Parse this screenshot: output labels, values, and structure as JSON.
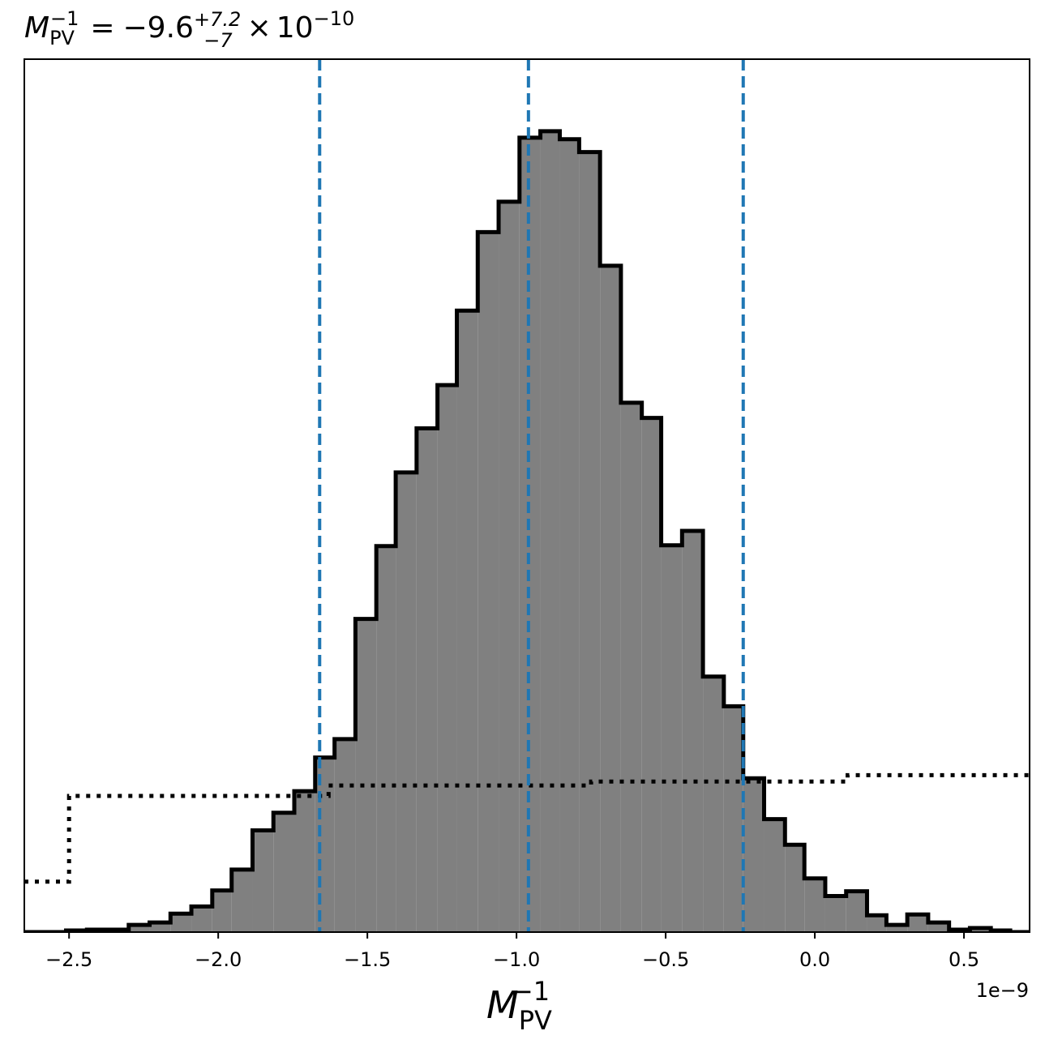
{
  "chart_data": {
    "type": "histogram",
    "title": {
      "symbol": "M",
      "subscript": "PV",
      "superscript": "−1",
      "equals": "=",
      "median": "−9.6",
      "plus_err": "+7.2",
      "minus_err": "−7",
      "times": "×",
      "base": "10",
      "exponent": "−10"
    },
    "xlabel": {
      "symbol": "M",
      "subscript": "PV",
      "superscript": "−1"
    },
    "ylabel": "",
    "x_offset_label": "1e−9",
    "xlim": [
      -2.65,
      0.72
    ],
    "ylim": [
      0,
      1.09
    ],
    "xticks": [
      -2.5,
      -2.0,
      -1.5,
      -1.0,
      -0.5,
      0.0,
      0.5
    ],
    "xtick_labels": [
      "−2.5",
      "−2.0",
      "−1.5",
      "−1.0",
      "−0.5",
      "0.0",
      "0.5"
    ],
    "show_yticks": false,
    "grid": false,
    "posterior": {
      "fill_color": "#808080",
      "edge_color": "#000000",
      "bin_edges": [
        -2.65,
        -2.58,
        -2.51,
        -2.44,
        -2.37,
        -2.3,
        -2.23,
        -2.16,
        -2.09,
        -2.02,
        -1.955,
        -1.885,
        -1.815,
        -1.745,
        -1.675,
        -1.61,
        -1.54,
        -1.47,
        -1.405,
        -1.335,
        -1.265,
        -1.2,
        -1.13,
        -1.06,
        -0.99,
        -0.92,
        -0.855,
        -0.79,
        -0.72,
        -0.65,
        -0.58,
        -0.515,
        -0.445,
        -0.375,
        -0.305,
        -0.24,
        -0.17,
        -0.1,
        -0.035,
        0.035,
        0.105,
        0.175,
        0.24,
        0.31,
        0.38,
        0.45,
        0.52,
        0.59,
        0.655,
        0.72
      ],
      "values": [
        0.0,
        0.0,
        0.002,
        0.003,
        0.003,
        0.009,
        0.012,
        0.023,
        0.032,
        0.052,
        0.078,
        0.127,
        0.149,
        0.176,
        0.218,
        0.241,
        0.391,
        0.482,
        0.574,
        0.629,
        0.683,
        0.776,
        0.874,
        0.912,
        0.992,
        1.0,
        0.99,
        0.974,
        0.832,
        0.661,
        0.642,
        0.483,
        0.501,
        0.319,
        0.282,
        0.192,
        0.141,
        0.109,
        0.067,
        0.045,
        0.051,
        0.021,
        0.009,
        0.022,
        0.012,
        0.003,
        0.005,
        0.002,
        0.0
      ],
      "max_density_label": ""
    },
    "prior": {
      "style": "dotted",
      "color": "#000000",
      "steps": [
        {
          "x0": -2.65,
          "x1": -2.5,
          "value": 0.063
        },
        {
          "x0": -2.5,
          "x1": -1.63,
          "value": 0.17
        },
        {
          "x0": -1.63,
          "x1": -0.75,
          "value": 0.183
        },
        {
          "x0": -0.75,
          "x1": 0.11,
          "value": 0.188
        },
        {
          "x0": 0.11,
          "x1": 0.72,
          "value": 0.196
        }
      ]
    },
    "quantile_lines": {
      "color": "#1f77b4",
      "style": "dashed",
      "x": [
        -1.66,
        -0.96,
        -0.24
      ]
    }
  }
}
